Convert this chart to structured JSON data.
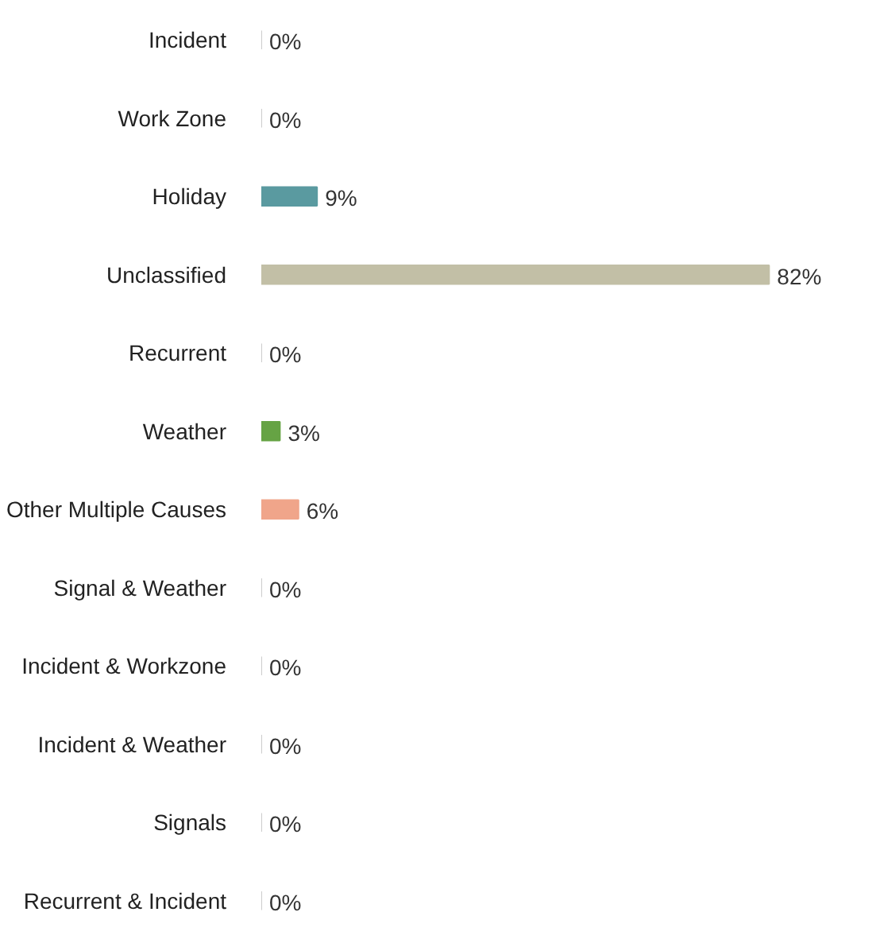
{
  "chart_data": {
    "type": "bar",
    "orientation": "horizontal",
    "categories": [
      "Incident",
      "Work Zone",
      "Holiday",
      "Unclassified",
      "Recurrent",
      "Weather",
      "Other Multiple Causes",
      "Signal & Weather",
      "Incident & Workzone",
      "Incident & Weather",
      "Signals",
      "Recurrent & Incident"
    ],
    "values": [
      0,
      0,
      9,
      82,
      0,
      3,
      6,
      0,
      0,
      0,
      0,
      0
    ],
    "value_labels": [
      "0%",
      "0%",
      "9%",
      "82%",
      "0%",
      "3%",
      "6%",
      "0%",
      "0%",
      "0%",
      "0%",
      "0%"
    ],
    "colors": [
      "#cccccc",
      "#cccccc",
      "#5a9aa0",
      "#c2bfa6",
      "#cccccc",
      "#66a344",
      "#f0a58a",
      "#cccccc",
      "#cccccc",
      "#cccccc",
      "#cccccc",
      "#cccccc"
    ]
  }
}
